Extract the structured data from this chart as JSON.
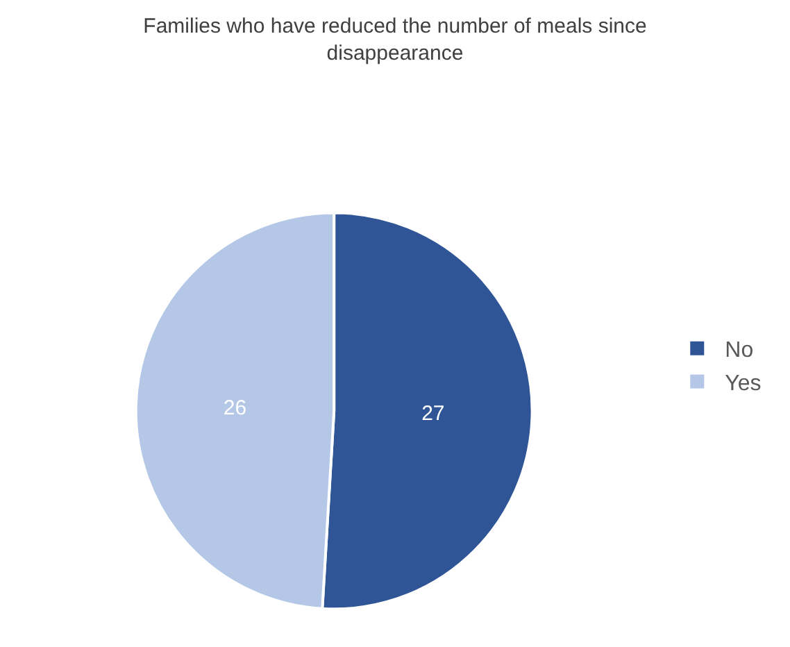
{
  "chart_data": {
    "type": "pie",
    "title": "Families who have reduced the number of meals since disappearance",
    "categories": [
      "No",
      "Yes"
    ],
    "values": [
      27,
      26
    ],
    "colors": [
      "#2f5597",
      "#b4c7e7"
    ],
    "data_labels": true,
    "legend": "right"
  }
}
